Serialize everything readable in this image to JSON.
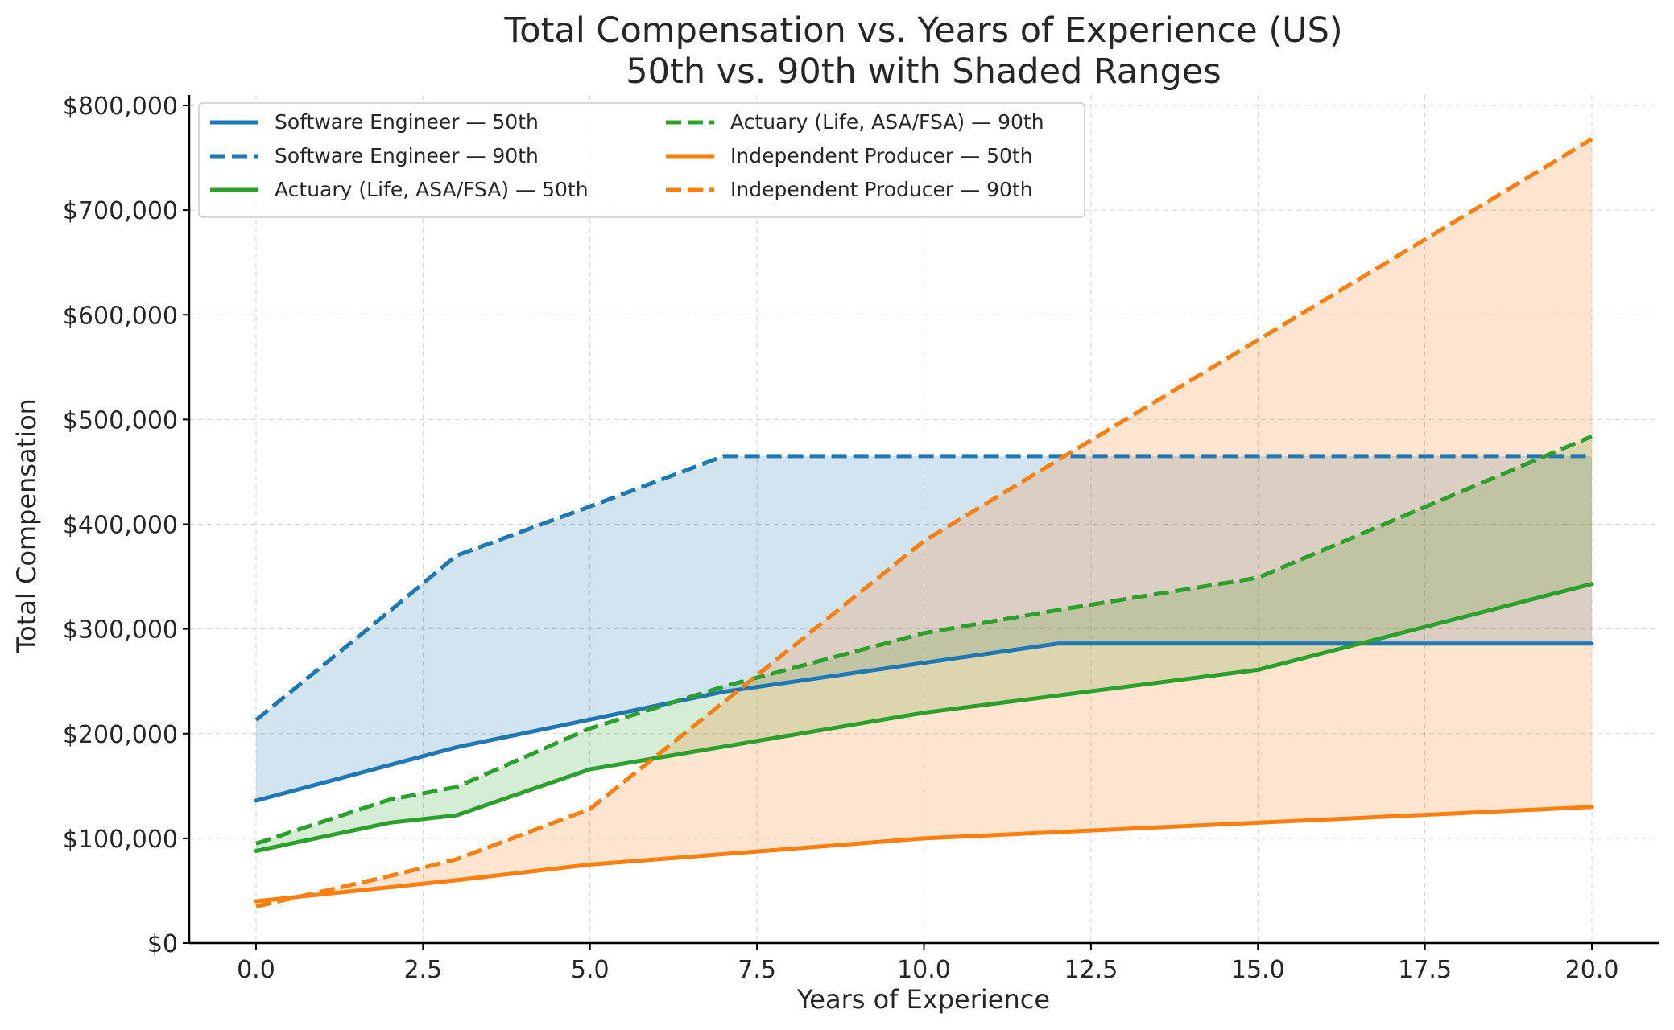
{
  "chart_data": {
    "type": "line",
    "title": "Total Compensation vs. Years of Experience (US)",
    "subtitle": "50th vs. 90th with Shaded Ranges",
    "xlabel": "Years of Experience",
    "ylabel": "Total Compensation",
    "xlim": [
      -1,
      21
    ],
    "ylim": [
      0,
      810000
    ],
    "xticks": [
      0.0,
      2.5,
      5.0,
      7.5,
      10.0,
      12.5,
      15.0,
      17.5,
      20.0
    ],
    "xtick_labels": [
      "0.0",
      "2.5",
      "5.0",
      "7.5",
      "10.0",
      "12.5",
      "15.0",
      "17.5",
      "20.0"
    ],
    "yticks": [
      0,
      100000,
      200000,
      300000,
      400000,
      500000,
      600000,
      700000,
      800000
    ],
    "ytick_labels": [
      "$0",
      "$100,000",
      "$200,000",
      "$300,000",
      "$400,000",
      "$500,000",
      "$600,000",
      "$700,000",
      "$800,000"
    ],
    "grid": true,
    "legend_position": "top-left",
    "series": [
      {
        "name": "Software Engineer — 50th",
        "group": "software",
        "percentile": "50th",
        "color": "#1f77b4",
        "dash": "solid",
        "x": [
          0,
          3,
          7,
          12,
          15,
          20
        ],
        "values": [
          136000,
          187000,
          240000,
          286000,
          286000,
          286000
        ]
      },
      {
        "name": "Software Engineer — 90th",
        "group": "software",
        "percentile": "90th",
        "color": "#1f77b4",
        "dash": "dashed",
        "x": [
          0,
          2,
          3,
          5,
          7,
          10,
          12,
          15,
          20
        ],
        "values": [
          213000,
          317000,
          370000,
          417000,
          465000,
          465000,
          465000,
          465000,
          465000
        ]
      },
      {
        "name": "Actuary (Life, ASA/FSA) — 50th",
        "group": "actuary",
        "percentile": "50th",
        "color": "#2ca02c",
        "dash": "solid",
        "x": [
          0,
          2,
          3,
          5,
          10,
          15,
          20
        ],
        "values": [
          88000,
          115000,
          122000,
          166000,
          220000,
          261000,
          343000
        ]
      },
      {
        "name": "Actuary (Life, ASA/FSA) — 90th",
        "group": "actuary",
        "percentile": "90th",
        "color": "#2ca02c",
        "dash": "dashed",
        "x": [
          0,
          2,
          3,
          5,
          7,
          10,
          12,
          15,
          20
        ],
        "values": [
          95000,
          137000,
          149000,
          205000,
          245000,
          296000,
          318000,
          349000,
          484000
        ]
      },
      {
        "name": "Independent Producer — 50th",
        "group": "producer",
        "percentile": "50th",
        "color": "#ff7f0e",
        "dash": "solid",
        "x": [
          0,
          3,
          5,
          10,
          15,
          20
        ],
        "values": [
          40000,
          60000,
          75000,
          100000,
          115000,
          130000
        ]
      },
      {
        "name": "Independent Producer — 90th",
        "group": "producer",
        "percentile": "90th",
        "color": "#ff7f0e",
        "dash": "dashed",
        "x": [
          0,
          2,
          3,
          5,
          7,
          10,
          12,
          15,
          20
        ],
        "values": [
          35000,
          64000,
          80000,
          128000,
          230000,
          384000,
          461000,
          576000,
          768000
        ]
      }
    ],
    "shaded_ranges": [
      {
        "name": "Software Engineer range",
        "color": "#1f77b4",
        "lower": "Software Engineer — 50th",
        "upper": "Software Engineer — 90th"
      },
      {
        "name": "Actuary range",
        "color": "#2ca02c",
        "lower": "Actuary (Life, ASA/FSA) — 50th",
        "upper": "Actuary (Life, ASA/FSA) — 90th"
      },
      {
        "name": "Independent Producer range",
        "color": "#ff7f0e",
        "lower": "Independent Producer — 50th",
        "upper": "Independent Producer — 90th"
      }
    ],
    "legend_columns": [
      [
        "Software Engineer — 50th",
        "Software Engineer — 90th",
        "Actuary (Life, ASA/FSA) — 50th"
      ],
      [
        "Actuary (Life, ASA/FSA) — 90th",
        "Independent Producer — 50th",
        "Independent Producer — 90th"
      ]
    ]
  }
}
